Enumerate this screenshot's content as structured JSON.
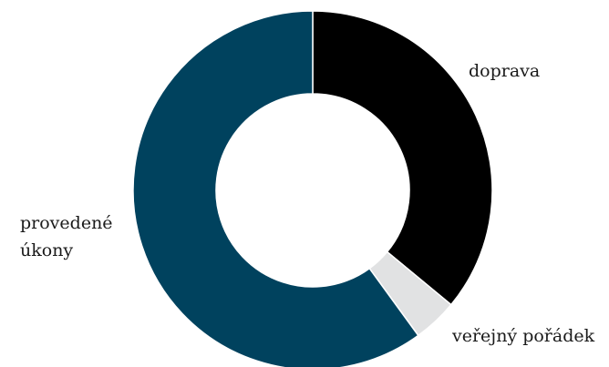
{
  "chart_data": {
    "type": "pie",
    "donut": true,
    "slices": [
      {
        "label": "doprava",
        "label_lines": [
          "doprava"
        ],
        "value": 36,
        "color": "#000000"
      },
      {
        "label": "veřejný pořádek",
        "label_lines": [
          "veřejný pořádek"
        ],
        "value": 4,
        "color": "#e1e2e3"
      },
      {
        "label": "provedené úkony",
        "label_lines": [
          "provedené",
          "úkony"
        ],
        "value": 60,
        "color": "#00425e"
      }
    ]
  }
}
